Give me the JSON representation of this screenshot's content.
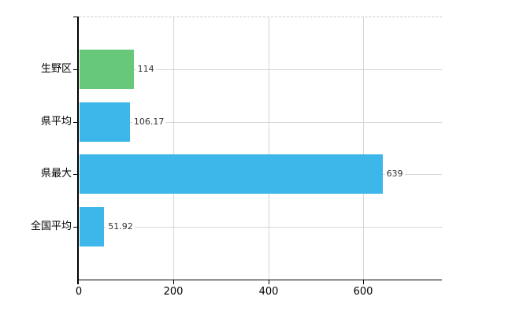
{
  "chart_data": {
    "type": "bar",
    "orientation": "horizontal",
    "title": "",
    "xlabel": "",
    "ylabel": "",
    "categories": [
      "生野区",
      "県平均",
      "県最大",
      "全国平均"
    ],
    "values": [
      114,
      106.17,
      639,
      51.92
    ],
    "value_labels": [
      "114",
      "106.17",
      "639",
      "51.92"
    ],
    "bar_colors": [
      "#66c878",
      "#3db7e9",
      "#3db7e9",
      "#3db7e9"
    ],
    "x_ticks": [
      0,
      200,
      400,
      600
    ],
    "x_tick_labels": [
      "0",
      "200",
      "400",
      "600"
    ],
    "xlim": [
      0,
      766
    ],
    "grid": true,
    "legend": "none"
  },
  "colors": {
    "background": "#ffffff",
    "axis": "#000000",
    "gridline": "#d4d7d2",
    "top_boundary": "#cccccc",
    "value_label": "#333333",
    "tick_label": "#000000"
  }
}
